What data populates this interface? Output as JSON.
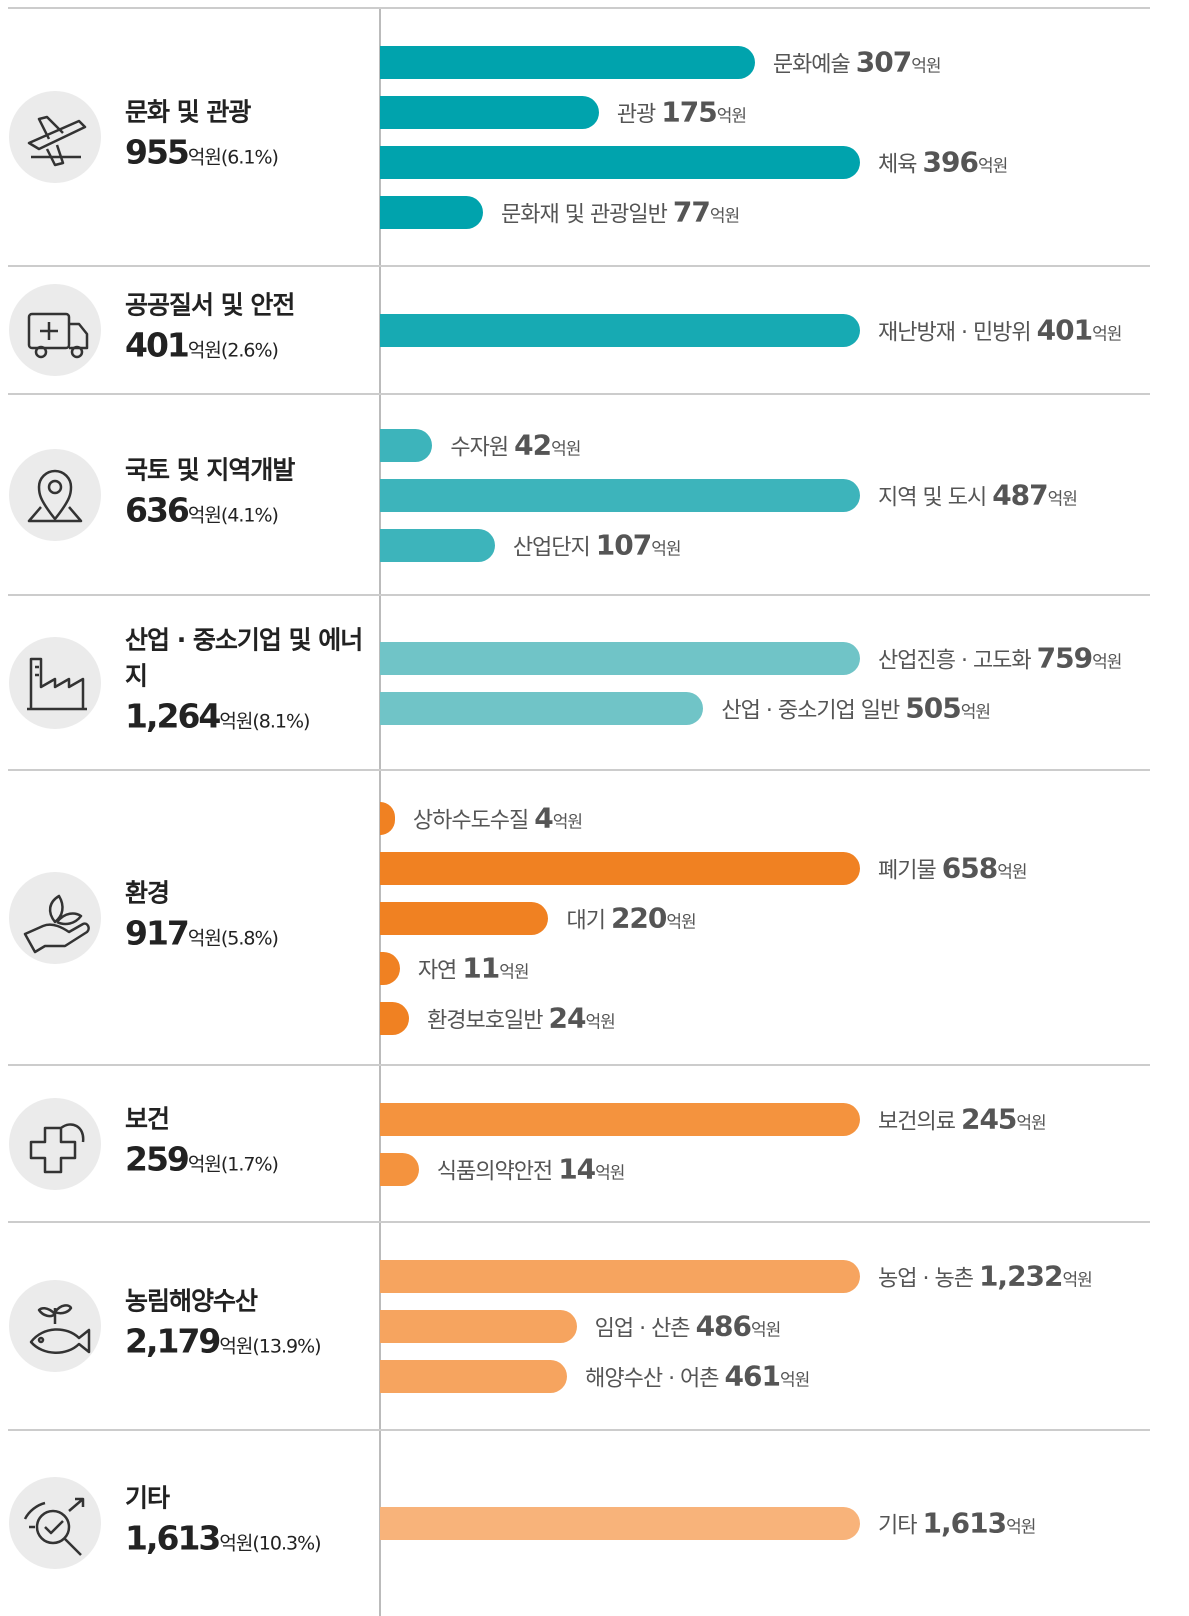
{
  "unit": "억원",
  "groups": [
    {
      "name": "문화 및 관광",
      "total": "955",
      "share": "(6.1%)",
      "color": "#00a3ad",
      "items": [
        {
          "name": "문화예술",
          "value": 307
        },
        {
          "name": "관광",
          "value": 175
        },
        {
          "name": "체육",
          "value": 396
        },
        {
          "name": "문화재 및 관광일반",
          "value": 77
        }
      ]
    },
    {
      "name": "공공질서 및 안전",
      "total": "401",
      "share": "(2.6%)",
      "color": "#17aab3",
      "items": [
        {
          "name": "재난방재 · 민방위",
          "value": 401
        }
      ]
    },
    {
      "name": "국토 및 지역개발",
      "total": "636",
      "share": "(4.1%)",
      "color": "#3db4bb",
      "items": [
        {
          "name": "수자원",
          "value": 42
        },
        {
          "name": "지역 및 도시",
          "value": 487
        },
        {
          "name": "산업단지",
          "value": 107
        }
      ]
    },
    {
      "name": "산업 · 중소기업 및 에너지",
      "total": "1,264",
      "share": "(8.1%)",
      "color": "#70c4c7",
      "items": [
        {
          "name": "산업진흥 · 고도화",
          "value": 759
        },
        {
          "name": "산업 · 중소기업 일반",
          "value": 505
        }
      ]
    },
    {
      "name": "환경",
      "total": "917",
      "share": "(5.8%)",
      "color": "#f08122",
      "items": [
        {
          "name": "상하수도수질",
          "value": 4
        },
        {
          "name": "폐기물",
          "value": 658
        },
        {
          "name": "대기",
          "value": 220
        },
        {
          "name": "자연",
          "value": 11
        },
        {
          "name": "환경보호일반",
          "value": 24
        }
      ]
    },
    {
      "name": "보건",
      "total": "259",
      "share": "(1.7%)",
      "color": "#f4933e",
      "items": [
        {
          "name": "보건의료",
          "value": 245
        },
        {
          "name": "식품의약안전",
          "value": 14
        }
      ]
    },
    {
      "name": "농림해양수산",
      "total": "2,179",
      "share": "(13.9%)",
      "color": "#f6a45f",
      "items": [
        {
          "name": "농업 · 농촌",
          "value": 1232,
          "label": "1,232"
        },
        {
          "name": "임업 · 산촌",
          "value": 486
        },
        {
          "name": "해양수산 · 어촌",
          "value": 461
        }
      ]
    },
    {
      "name": "기타",
      "total": "1,613",
      "share": "(10.3%)",
      "color": "#f8b37a",
      "items": [
        {
          "name": "기타",
          "value": 1613,
          "label": "1,613"
        }
      ]
    }
  ]
}
